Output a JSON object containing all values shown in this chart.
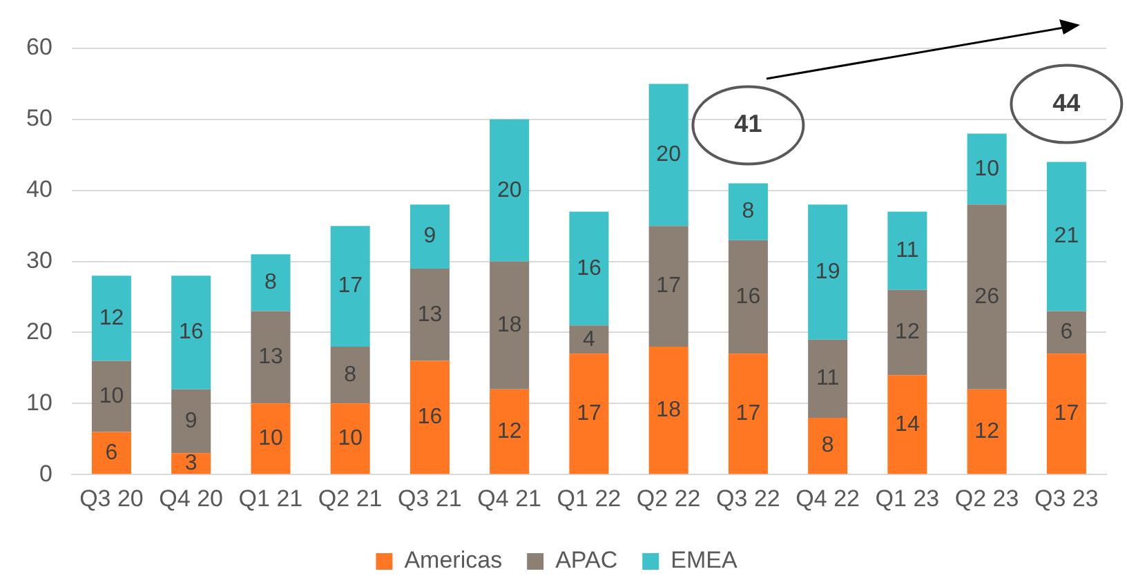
{
  "chart_data": {
    "type": "bar",
    "stacked": true,
    "categories": [
      "Q3 20",
      "Q4 20",
      "Q1 21",
      "Q2 21",
      "Q3 21",
      "Q4 21",
      "Q1 22",
      "Q2 22",
      "Q3 22",
      "Q4 22",
      "Q1 23",
      "Q2 23",
      "Q3 23"
    ],
    "series": [
      {
        "name": "Americas",
        "color": "#ff7722",
        "values": [
          6,
          3,
          10,
          10,
          16,
          12,
          17,
          18,
          17,
          8,
          14,
          12,
          17
        ]
      },
      {
        "name": "APAC",
        "color": "#8c8075",
        "values": [
          10,
          9,
          13,
          8,
          13,
          18,
          4,
          17,
          16,
          11,
          12,
          26,
          6
        ]
      },
      {
        "name": "EMEA",
        "color": "#3fc1c9",
        "values": [
          12,
          16,
          8,
          17,
          9,
          20,
          16,
          20,
          8,
          19,
          11,
          10,
          21
        ]
      }
    ],
    "ylim": [
      0,
      60
    ],
    "yticks": [
      0,
      10,
      20,
      30,
      40,
      50,
      60
    ],
    "grid": "y",
    "legend": "bottom",
    "data_labels": true,
    "annotations": [
      {
        "text": "41",
        "x": "Q3 22",
        "y": 41
      },
      {
        "text": "44",
        "x": "Q3 23",
        "y": 44
      }
    ]
  }
}
